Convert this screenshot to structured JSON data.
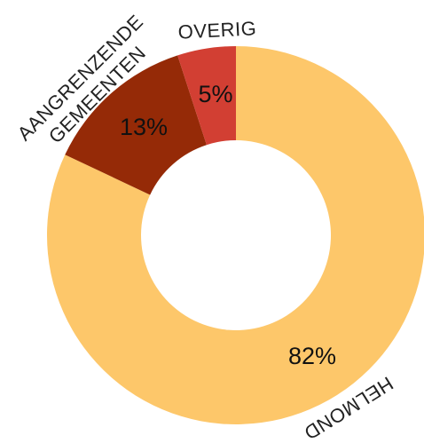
{
  "chart_data": {
    "type": "donut",
    "categories": [
      "HELMOND",
      "AANGRENZENDE GEMEENTEN",
      "OVERIG"
    ],
    "values": [
      82,
      13,
      5
    ],
    "value_labels": [
      "82%",
      "13%",
      "5%"
    ],
    "colors": [
      "#fdc76a",
      "#952a07",
      "#d23f33"
    ]
  }
}
